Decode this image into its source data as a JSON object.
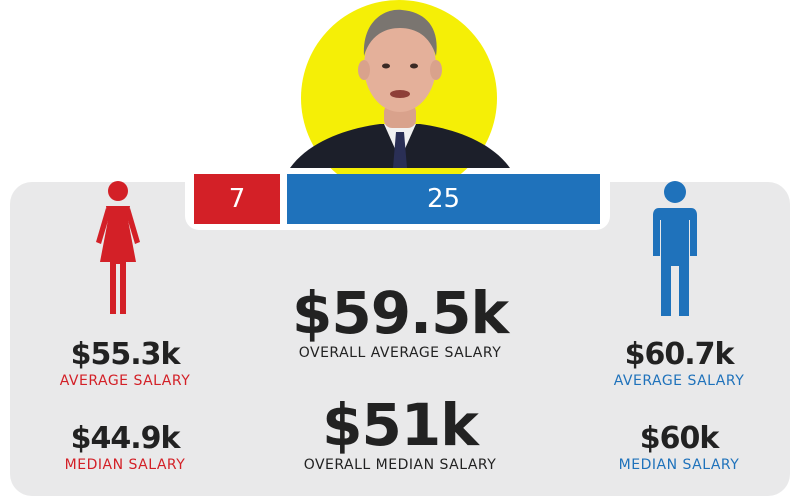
{
  "counts": {
    "female": "7",
    "male": "25"
  },
  "female": {
    "average_value": "$55.3k",
    "average_label": "AVERAGE SALARY",
    "median_value": "$44.9k",
    "median_label": "MEDIAN SALARY"
  },
  "male": {
    "average_value": "$60.7k",
    "average_label": "AVERAGE SALARY",
    "median_value": "$60k",
    "median_label": "MEDIAN SALARY"
  },
  "overall": {
    "average_value": "$59.5k",
    "average_label": "OVERALL AVERAGE SALARY",
    "median_value": "$51k",
    "median_label": "OVERALL MEDIAN SALARY"
  },
  "colors": {
    "female": "#d32027",
    "male": "#1f72bb",
    "panel": "#e9e9ea",
    "accent": "#f5ef06"
  },
  "icons": {
    "female": "female-figure-icon",
    "male": "male-figure-icon"
  }
}
